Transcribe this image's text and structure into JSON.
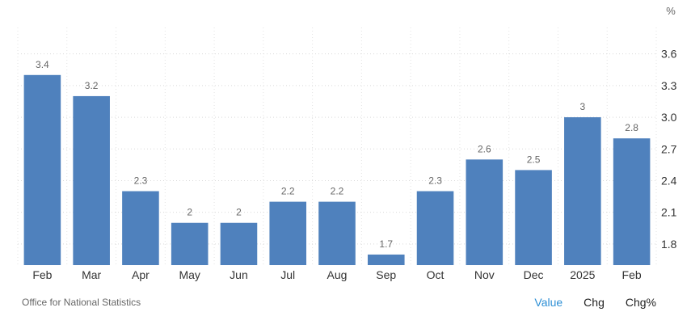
{
  "chart_data": {
    "type": "bar",
    "categories": [
      "Feb",
      "Mar",
      "Apr",
      "May",
      "Jun",
      "Jul",
      "Aug",
      "Sep",
      "Oct",
      "Nov",
      "Dec",
      "2025",
      "Feb"
    ],
    "values": [
      3.4,
      3.2,
      2.3,
      2.0,
      2.0,
      2.2,
      2.2,
      1.7,
      2.3,
      2.6,
      2.5,
      3.0,
      2.8
    ],
    "data_labels": [
      "3.4",
      "3.2",
      "2.3",
      "2",
      "2",
      "2.2",
      "2.2",
      "1.7",
      "2.3",
      "2.6",
      "2.5",
      "3",
      "2.8"
    ],
    "unit": "%",
    "y_ticks": [
      "1.8",
      "2.1",
      "2.4",
      "2.7",
      "3.0",
      "3.3",
      "3.6"
    ],
    "ylim": [
      1.6,
      3.85
    ],
    "grid": true,
    "bar_color": "#4f81bd"
  },
  "footer": {
    "source": "Office for National Statistics",
    "toggles": [
      {
        "label": "Value",
        "active": true
      },
      {
        "label": "Chg",
        "active": false
      },
      {
        "label": "Chg%",
        "active": false
      }
    ],
    "active_color": "#2d8fd5"
  }
}
